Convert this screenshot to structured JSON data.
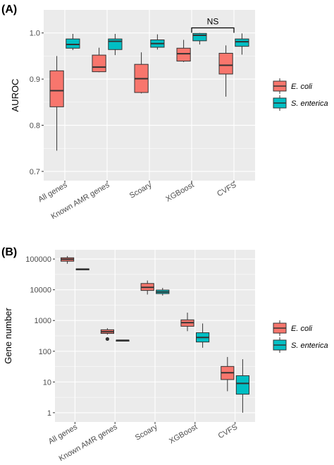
{
  "colors": {
    "e_coli": "#f8766d",
    "s_enterica": "#00bfc4",
    "panel": "#ebebeb"
  },
  "chart_data": [
    {
      "type": "boxplot",
      "panel_label": "(A)",
      "ylabel": "AUROC",
      "xlabel": "",
      "ylim": [
        0.68,
        1.05
      ],
      "yticks": [
        0.7,
        0.8,
        0.9,
        1.0
      ],
      "ytick_labels": [
        "0.7",
        "0.8",
        "0.9",
        "1.0"
      ],
      "grid": true,
      "legend_position": "right",
      "categories": [
        "All genes",
        "Known AMR genes",
        "Scoary",
        "XGBoost",
        "CVFS"
      ],
      "series": [
        {
          "name": "E. coli",
          "color": "#f8766d",
          "boxes": [
            {
              "min": 0.745,
              "q1": 0.84,
              "median": 0.875,
              "q3": 0.918,
              "max": 0.95,
              "outliers": []
            },
            {
              "min": 0.915,
              "q1": 0.916,
              "median": 0.926,
              "q3": 0.952,
              "max": 0.968,
              "outliers": []
            },
            {
              "min": 0.869,
              "q1": 0.871,
              "median": 0.901,
              "q3": 0.932,
              "max": 0.958,
              "outliers": []
            },
            {
              "min": 0.937,
              "q1": 0.939,
              "median": 0.955,
              "q3": 0.967,
              "max": 0.985,
              "outliers": []
            },
            {
              "min": 0.862,
              "q1": 0.911,
              "median": 0.93,
              "q3": 0.956,
              "max": 0.973,
              "outliers": []
            }
          ]
        },
        {
          "name": "S. enterica",
          "color": "#00bfc4",
          "boxes": [
            {
              "min": 0.963,
              "q1": 0.967,
              "median": 0.975,
              "q3": 0.987,
              "max": 0.998,
              "outliers": []
            },
            {
              "min": 0.952,
              "q1": 0.964,
              "median": 0.982,
              "q3": 0.987,
              "max": 0.998,
              "outliers": []
            },
            {
              "min": 0.964,
              "q1": 0.969,
              "median": 0.977,
              "q3": 0.985,
              "max": 0.997,
              "outliers": []
            },
            {
              "min": 0.975,
              "q1": 0.983,
              "median": 0.995,
              "q3": 0.999,
              "max": 1.0,
              "outliers": []
            },
            {
              "min": 0.953,
              "q1": 0.971,
              "median": 0.981,
              "q3": 0.987,
              "max": 0.999,
              "outliers": []
            }
          ]
        }
      ],
      "annotations": [
        {
          "text": "NS",
          "from_category": "XGBoost",
          "to_category": "CVFS",
          "y": 1.011
        }
      ]
    },
    {
      "type": "boxplot",
      "panel_label": "(B)",
      "ylabel": "Gene number",
      "xlabel": "",
      "yscale": "log10",
      "ylim": [
        0.5,
        200000
      ],
      "yticks": [
        1,
        10,
        100,
        1000,
        10000,
        100000
      ],
      "ytick_labels": [
        "1",
        "10",
        "100",
        "1000",
        "10000",
        "100000"
      ],
      "grid": true,
      "legend_position": "right",
      "categories": [
        "All genes",
        "Known AMR genes",
        "Scoary",
        "XGBoost",
        "CVFS"
      ],
      "series": [
        {
          "name": "E. coli",
          "color": "#f8766d",
          "boxes": [
            {
              "min": 70000,
              "q1": 85000,
              "median": 98000,
              "q3": 110000,
              "max": 125000,
              "outliers": []
            },
            {
              "min": 350,
              "q1": 380,
              "median": 430,
              "q3": 500,
              "max": 560,
              "outliers": [
                250
              ]
            },
            {
              "min": 7000,
              "q1": 9500,
              "median": 12000,
              "q3": 16000,
              "max": 20000,
              "outliers": []
            },
            {
              "min": 450,
              "q1": 650,
              "median": 850,
              "q3": 1050,
              "max": 1800,
              "outliers": []
            },
            {
              "min": 5,
              "q1": 12,
              "median": 20,
              "q3": 32,
              "max": 65,
              "outliers": []
            }
          ]
        },
        {
          "name": "S. enterica",
          "color": "#00bfc4",
          "boxes": [
            {
              "min": 45000,
              "q1": 46000,
              "median": 47000,
              "q3": 48000,
              "max": 49000,
              "outliers": []
            },
            {
              "min": 220,
              "q1": 224,
              "median": 227,
              "q3": 230,
              "max": 234,
              "outliers": []
            },
            {
              "min": 6500,
              "q1": 7500,
              "median": 8500,
              "q3": 9800,
              "max": 11500,
              "outliers": []
            },
            {
              "min": 130,
              "q1": 200,
              "median": 280,
              "q3": 400,
              "max": 800,
              "outliers": []
            },
            {
              "min": 1,
              "q1": 4,
              "median": 9,
              "q3": 16,
              "max": 55,
              "outliers": []
            }
          ]
        }
      ],
      "annotations": []
    }
  ]
}
